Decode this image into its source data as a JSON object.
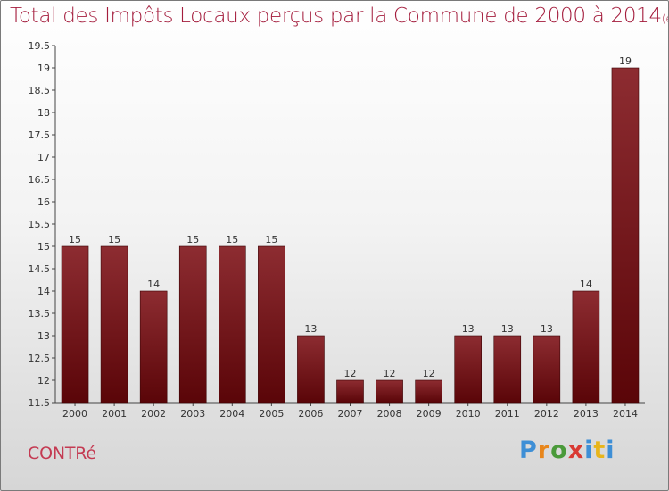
{
  "title": {
    "main": "Total des Impôts Locaux perçus par la Commune de 2000 à 2014",
    "unit": "(en milliers d'€)"
  },
  "commune": "CONTRé",
  "logo": {
    "letters": [
      "P",
      "r",
      "o",
      "x",
      "i",
      "t",
      "i"
    ],
    "colors": [
      "#3e8fd6",
      "#e8861b",
      "#4a9a3a",
      "#d93a33",
      "#3e8fd6",
      "#e8b51b",
      "#3e8fd6"
    ]
  },
  "chart_data": {
    "type": "bar",
    "categories": [
      "2000",
      "2001",
      "2002",
      "2003",
      "2004",
      "2005",
      "2006",
      "2007",
      "2008",
      "2009",
      "2010",
      "2011",
      "2012",
      "2013",
      "2014"
    ],
    "values": [
      15,
      15,
      14,
      15,
      15,
      15,
      13,
      12,
      12,
      12,
      13,
      13,
      13,
      14,
      19
    ],
    "labels": [
      "15",
      "15",
      "14",
      "15",
      "15",
      "15",
      "13",
      "12",
      "12",
      "12",
      "13",
      "13",
      "13",
      "14",
      "19"
    ],
    "ylim": [
      11.5,
      19.5
    ],
    "yticks": [
      "11.5",
      "12",
      "12.5",
      "13",
      "13.5",
      "14",
      "14.5",
      "15",
      "15.5",
      "16",
      "16.5",
      "17",
      "17.5",
      "18",
      "18.5",
      "19",
      "19.5"
    ],
    "grid": false,
    "bar_color": "#7b1a1e"
  }
}
